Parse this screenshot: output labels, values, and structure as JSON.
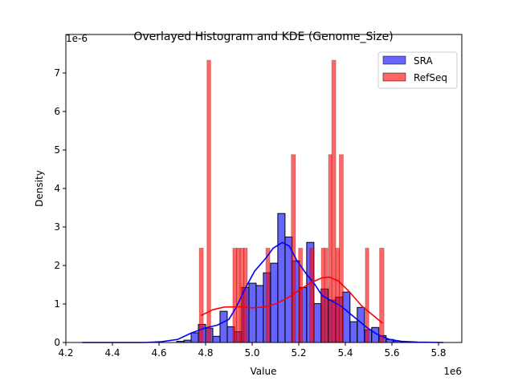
{
  "chart_data": {
    "type": "bar",
    "title": "Overlayed Histogram and KDE (Genome_Size)",
    "xlabel": "Value",
    "ylabel": "Density",
    "x_offset_label": "1e6",
    "y_offset_label": "1e-6",
    "xlim": [
      4.22,
      5.9
    ],
    "ylim": [
      0,
      7.7
    ],
    "x_ticks": [
      "4.2",
      "4.4",
      "4.6",
      "4.8",
      "5.0",
      "5.2",
      "5.4",
      "5.6",
      "5.8"
    ],
    "y_ticks": [
      "0",
      "1",
      "2",
      "3",
      "4",
      "5",
      "6",
      "7"
    ],
    "grid": false,
    "legend_position": "top-right",
    "series": [
      {
        "name": "SRA",
        "color": "#0000ff",
        "bin_start": 4.676,
        "bin_width": 0.031,
        "values": [
          0.03,
          0.06,
          0.25,
          0.47,
          0.37,
          0.16,
          0.81,
          0.41,
          0.28,
          1.43,
          1.54,
          1.48,
          1.81,
          2.06,
          3.35,
          2.74,
          2.12,
          1.43,
          2.6,
          1.01,
          1.39,
          1.1,
          1.18,
          1.31,
          0.54,
          0.91,
          0.33,
          0.39,
          0.18,
          0.08,
          0.04,
          0.01
        ],
        "kde": [
          [
            4.27,
            0
          ],
          [
            4.54,
            0.0
          ],
          [
            4.61,
            0.02
          ],
          [
            4.68,
            0.08
          ],
          [
            4.74,
            0.25
          ],
          [
            4.8,
            0.38
          ],
          [
            4.85,
            0.45
          ],
          [
            4.9,
            0.6
          ],
          [
            4.93,
            0.9
          ],
          [
            4.97,
            1.4
          ],
          [
            5.01,
            1.85
          ],
          [
            5.06,
            2.2
          ],
          [
            5.09,
            2.45
          ],
          [
            5.13,
            2.6
          ],
          [
            5.16,
            2.5
          ],
          [
            5.19,
            2.15
          ],
          [
            5.23,
            1.8
          ],
          [
            5.27,
            1.5
          ],
          [
            5.3,
            1.22
          ],
          [
            5.35,
            1.05
          ],
          [
            5.38,
            0.95
          ],
          [
            5.43,
            0.7
          ],
          [
            5.49,
            0.4
          ],
          [
            5.54,
            0.2
          ],
          [
            5.59,
            0.08
          ],
          [
            5.64,
            0.03
          ],
          [
            5.71,
            0.01
          ],
          [
            5.82,
            0
          ]
        ]
      },
      {
        "name": "RefSeq",
        "color": "#ff0000",
        "bars": [
          [
            4.773,
            4.79,
            2.45
          ],
          [
            4.806,
            4.822,
            7.33
          ],
          [
            4.917,
            4.933,
            2.45
          ],
          [
            4.933,
            4.948,
            2.45
          ],
          [
            4.948,
            4.964,
            2.45
          ],
          [
            4.964,
            4.979,
            2.45
          ],
          [
            5.059,
            5.076,
            2.45
          ],
          [
            5.168,
            5.186,
            4.88
          ],
          [
            5.199,
            5.216,
            2.45
          ],
          [
            5.247,
            5.266,
            2.45
          ],
          [
            5.297,
            5.311,
            2.45
          ],
          [
            5.311,
            5.325,
            2.45
          ],
          [
            5.328,
            5.342,
            4.88
          ],
          [
            5.342,
            5.359,
            7.33
          ],
          [
            5.359,
            5.374,
            2.45
          ],
          [
            5.374,
            5.391,
            4.88
          ],
          [
            5.486,
            5.501,
            2.45
          ],
          [
            5.547,
            5.566,
            2.45
          ]
        ],
        "kde": [
          [
            4.78,
            0.7
          ],
          [
            4.83,
            0.85
          ],
          [
            4.88,
            0.92
          ],
          [
            4.95,
            0.93
          ],
          [
            5.0,
            0.9
          ],
          [
            5.05,
            0.92
          ],
          [
            5.1,
            1.0
          ],
          [
            5.15,
            1.15
          ],
          [
            5.2,
            1.35
          ],
          [
            5.25,
            1.55
          ],
          [
            5.3,
            1.68
          ],
          [
            5.33,
            1.7
          ],
          [
            5.37,
            1.6
          ],
          [
            5.42,
            1.3
          ],
          [
            5.47,
            0.95
          ],
          [
            5.52,
            0.7
          ],
          [
            5.56,
            0.5
          ]
        ]
      }
    ]
  }
}
